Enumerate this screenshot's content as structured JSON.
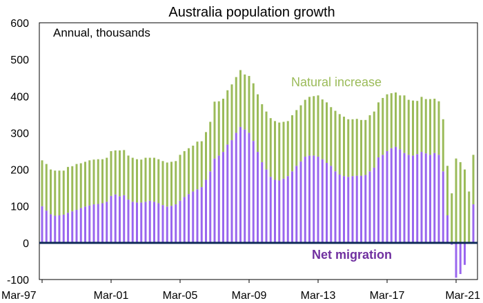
{
  "chart_data": {
    "type": "bar",
    "stacked": true,
    "title": "Australia population growth",
    "subtitle": "Annual, thousands",
    "ylim": [
      -100,
      600
    ],
    "yticks": [
      -100,
      0,
      100,
      200,
      300,
      400,
      500,
      600
    ],
    "xticks": [
      "Mar-97",
      "Mar-01",
      "Mar-05",
      "Mar-09",
      "Mar-13",
      "Mar-17",
      "Mar-21"
    ],
    "grid": false,
    "annotations": [
      {
        "text": "Natural increase",
        "color": "#9bbb59"
      },
      {
        "text": "Net migration",
        "color": "#7030a0"
      }
    ],
    "series": [
      {
        "name": "Net migration",
        "color": "#9966ee",
        "values": [
          100,
          88,
          78,
          74,
          75,
          77,
          82,
          86,
          90,
          95,
          99,
          102,
          105,
          106,
          108,
          112,
          128,
          132,
          127,
          130,
          118,
          112,
          110,
          110,
          112,
          115,
          112,
          108,
          103,
          99,
          101,
          105,
          115,
          125,
          133,
          140,
          146,
          152,
          172,
          195,
          230,
          238,
          248,
          268,
          280,
          300,
          316,
          309,
          300,
          278,
          248,
          220,
          200,
          180,
          172,
          170,
          175,
          182,
          195,
          210,
          222,
          235,
          238,
          238,
          235,
          228,
          218,
          210,
          195,
          186,
          182,
          180,
          182,
          183,
          183,
          185,
          195,
          205,
          233,
          240,
          250,
          258,
          262,
          255,
          245,
          240,
          238,
          242,
          248,
          244,
          240,
          245,
          240,
          195,
          75,
          -5,
          -95,
          -85,
          -60,
          0,
          105
        ],
        "note": "Series appears only as an annotation on the chart"
      },
      {
        "name": "Natural increase",
        "color": "#9bbb59",
        "values": [
          125,
          127,
          122,
          123,
          122,
          120,
          125,
          123,
          125,
          122,
          122,
          123,
          122,
          122,
          120,
          120,
          122,
          120,
          125,
          123,
          120,
          120,
          118,
          117,
          120,
          117,
          120,
          120,
          120,
          120,
          120,
          118,
          125,
          125,
          125,
          125,
          130,
          125,
          130,
          135,
          155,
          148,
          145,
          148,
          152,
          152,
          155,
          150,
          155,
          157,
          157,
          158,
          158,
          160,
          160,
          158,
          155,
          150,
          153,
          152,
          153,
          155,
          160,
          162,
          167,
          163,
          165,
          160,
          165,
          165,
          162,
          157,
          155,
          155,
          152,
          150,
          153,
          153,
          150,
          155,
          155,
          150,
          148,
          147,
          157,
          150,
          150,
          145,
          150,
          148,
          152,
          148,
          146,
          142,
          135,
          135,
          230,
          220,
          200,
          140,
          135
        ]
      }
    ]
  }
}
